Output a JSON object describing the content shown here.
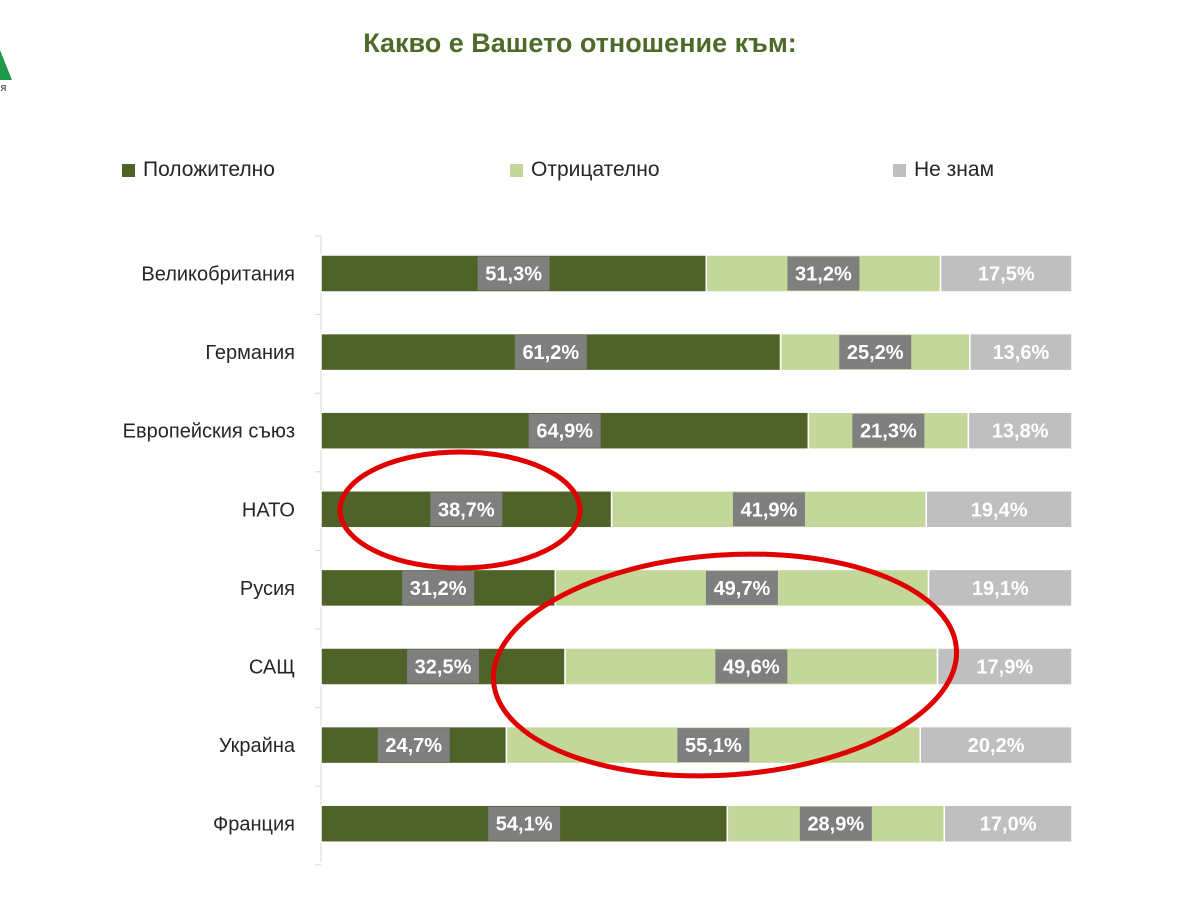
{
  "logo": {
    "subtext": "я"
  },
  "chart_data": {
    "type": "bar",
    "orientation": "horizontal",
    "stacked": true,
    "percent_scale": true,
    "title": "Какво е Вашето отношение към:",
    "xlabel": "",
    "ylabel": "",
    "xlim": [
      0,
      100
    ],
    "grid": false,
    "legend_position": "top",
    "categories": [
      "Великобритания",
      "Германия",
      "Европейския съюз",
      "НАТО",
      "Русия",
      "САЩ",
      "Украйна",
      "Франция"
    ],
    "series": [
      {
        "name": "Положително",
        "color": "#4f6228",
        "values": [
          51.3,
          61.2,
          64.9,
          38.7,
          31.2,
          32.5,
          24.7,
          54.1
        ],
        "labels": [
          "51,3%",
          "61,2%",
          "64,9%",
          "38,7%",
          "31,2%",
          "32,5%",
          "24,7%",
          "54,1%"
        ]
      },
      {
        "name": "Отрицателно",
        "color": "#c4d79b",
        "values": [
          31.2,
          25.2,
          21.3,
          41.9,
          49.7,
          49.6,
          55.1,
          28.9
        ],
        "labels": [
          "31,2%",
          "25,2%",
          "21,3%",
          "41,9%",
          "49,7%",
          "49,6%",
          "55,1%",
          "28,9%"
        ]
      },
      {
        "name": "Не знам",
        "color": "#bfbfbf",
        "values": [
          17.5,
          13.6,
          13.8,
          19.4,
          19.1,
          17.9,
          20.2,
          17.0
        ],
        "labels": [
          "17,5%",
          "13,6%",
          "13,8%",
          "19,4%",
          "19,1%",
          "17,9%",
          "20,2%",
          "17,0%"
        ]
      }
    ],
    "data_label_background": "#7f7f7f",
    "highlight_color": "#e00000",
    "highlights": [
      {
        "category": "НАТО",
        "series": "Положително"
      },
      {
        "categories": [
          "Русия",
          "САЩ",
          "Украйна"
        ],
        "series": "Отрицателно"
      }
    ]
  }
}
